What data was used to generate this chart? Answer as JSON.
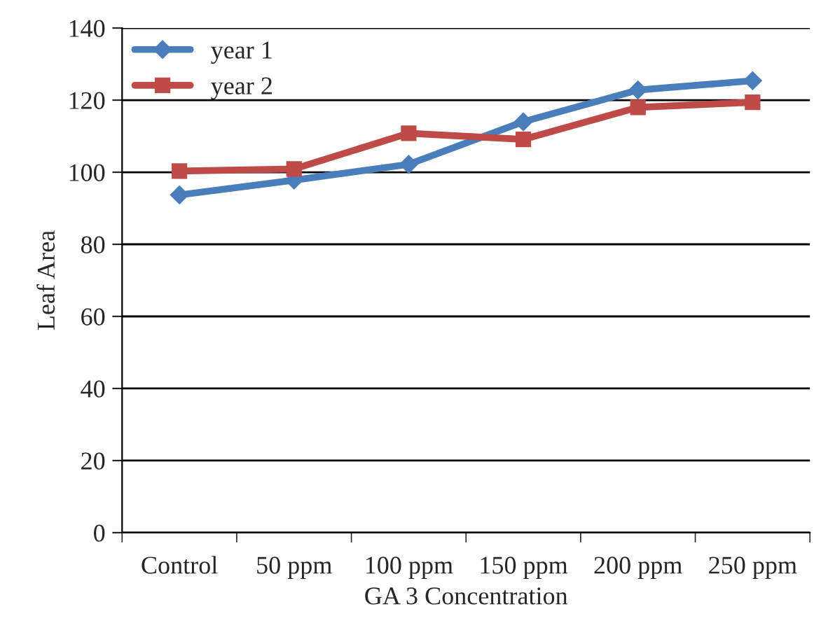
{
  "chart_data": {
    "type": "line",
    "xlabel": "GA 3 Concentration",
    "ylabel": "Leaf Area",
    "categories": [
      "Control",
      "50 ppm",
      "100 ppm",
      "150 ppm",
      "200 ppm",
      "250 ppm"
    ],
    "series": [
      {
        "name": "year 1",
        "color": "#4a7ebb",
        "values": [
          93.7,
          97.8,
          102.2,
          114,
          122.8,
          125.4
        ],
        "marker": "diamond"
      },
      {
        "name": "year 2",
        "color": "#be4b48",
        "values": [
          100.3,
          100.9,
          110.8,
          109.1,
          118,
          119.4
        ],
        "marker": "square"
      }
    ],
    "ylim": [
      0,
      140
    ],
    "yticks": [
      0,
      20,
      40,
      60,
      80,
      100,
      120,
      140
    ],
    "grid": "y",
    "legend": "top left",
    "line_style": "solid"
  }
}
